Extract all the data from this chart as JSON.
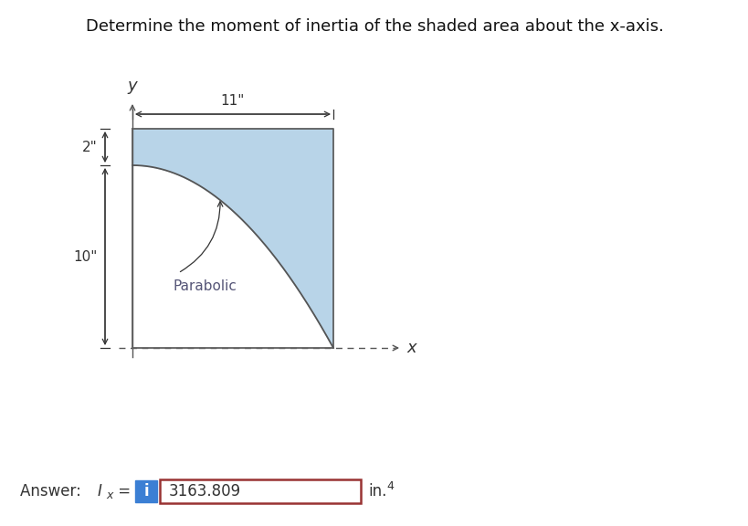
{
  "title": "Determine the moment of inertia of the shaded area about the x-axis.",
  "title_fontsize": 13,
  "background_color": "#ffffff",
  "shaded_color": "#b8d4e8",
  "outline_color": "#606060",
  "dim_color": "#333333",
  "axis_color": "#555555",
  "parabola_color": "#555555",
  "parabola_label": "Parabolic",
  "parabola_label_color": "#555577",
  "dim_2_label": "2\"",
  "dim_10_label": "10\"",
  "dim_11_label": "11\"",
  "answer_value": "3163.809",
  "answer_units": "in.",
  "answer_units_exp": "4",
  "info_button_color": "#3b7fd4",
  "info_button_text": "i",
  "answer_box_color": "#993333",
  "y_label": "y",
  "x_label": "x"
}
